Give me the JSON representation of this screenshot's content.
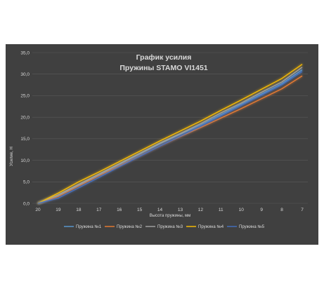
{
  "chart_data": {
    "type": "line",
    "title": [
      "График усилия",
      "Пружины STAMO VI1451"
    ],
    "xlabel": "Высота пружины, мм",
    "ylabel": "Усилие, Н",
    "x": [
      20,
      19,
      18,
      17,
      16,
      15,
      14,
      13,
      12,
      11,
      10,
      9,
      8,
      7
    ],
    "ylim": [
      0,
      35
    ],
    "y_ticks": [
      "0,0",
      "5,0",
      "10,0",
      "15,0",
      "20,0",
      "25,0",
      "30,0",
      "35,0"
    ],
    "grid": true,
    "legend_position": "bottom",
    "series": [
      {
        "name": "Пружина №1",
        "color": "#5b9bd5",
        "values": [
          0,
          1.8,
          4.2,
          6.6,
          9.0,
          11.4,
          13.8,
          16.0,
          18.2,
          20.6,
          23.0,
          25.4,
          27.8,
          31.0
        ]
      },
      {
        "name": "Пружина №2",
        "color": "#ed7d31",
        "values": [
          0,
          1.6,
          4.0,
          6.4,
          8.7,
          11.0,
          13.3,
          15.5,
          17.6,
          19.8,
          22.0,
          24.3,
          26.6,
          29.6
        ]
      },
      {
        "name": "Пружина №3",
        "color": "#a5a5a5",
        "values": [
          0,
          2.0,
          4.4,
          6.8,
          9.2,
          11.6,
          14.0,
          16.2,
          18.5,
          21.0,
          23.3,
          25.8,
          28.2,
          31.6
        ]
      },
      {
        "name": "Пружина №4",
        "color": "#ffc000",
        "values": [
          0,
          2.4,
          5.0,
          7.3,
          9.7,
          12.1,
          14.5,
          16.8,
          19.1,
          21.6,
          24.0,
          26.5,
          29.0,
          32.3
        ]
      },
      {
        "name": "Пружина №5",
        "color": "#4472c4",
        "values": [
          0,
          1.2,
          3.6,
          6.0,
          8.5,
          10.9,
          13.3,
          15.6,
          17.9,
          20.3,
          22.7,
          25.1,
          27.5,
          30.6
        ]
      }
    ]
  }
}
